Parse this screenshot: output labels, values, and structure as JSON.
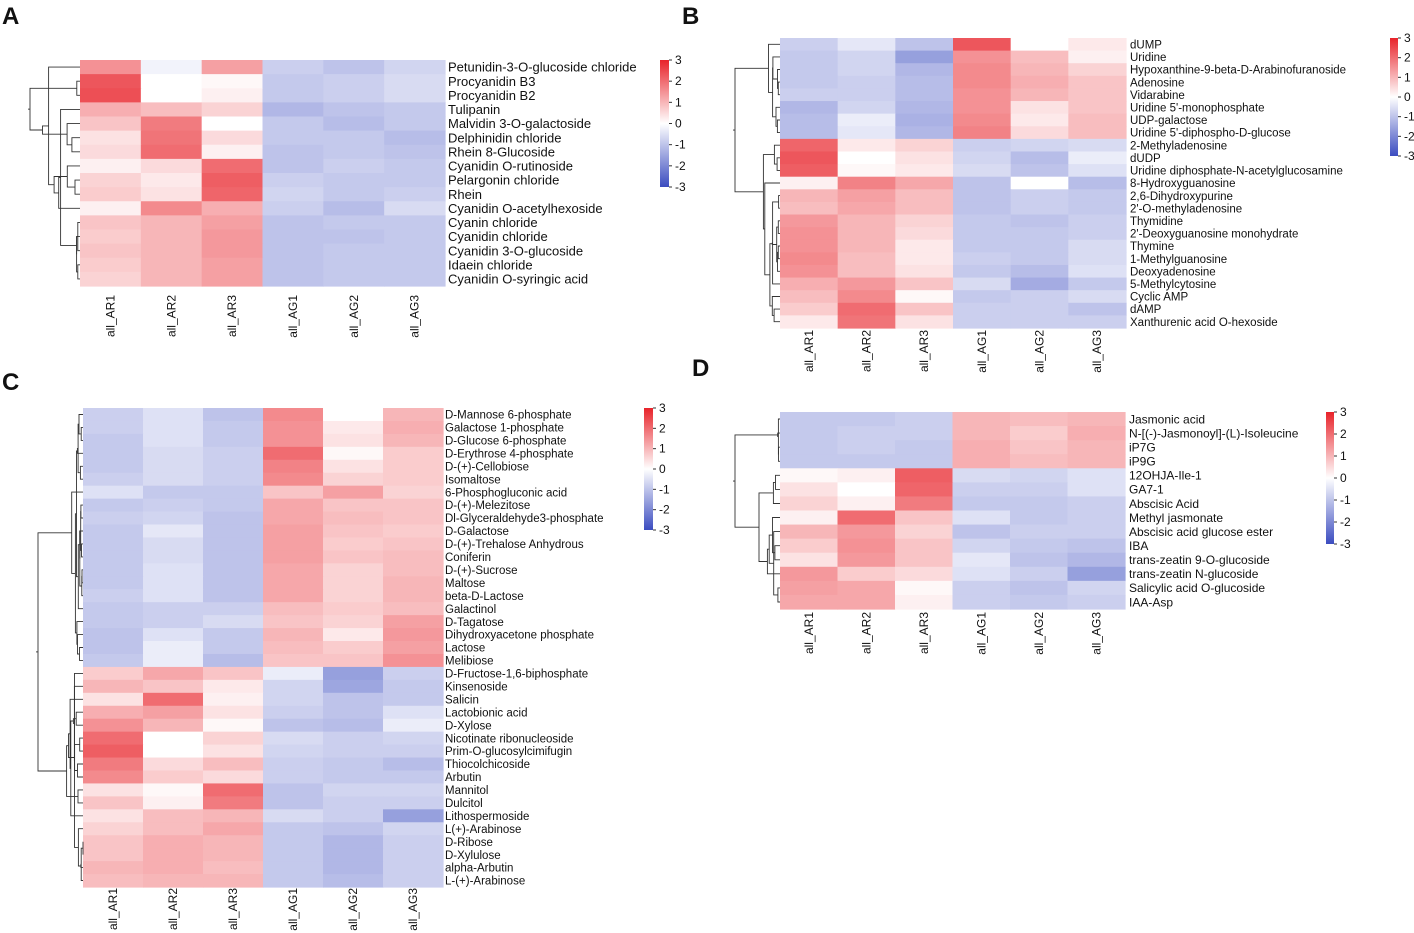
{
  "figure": {
    "colors": {
      "low": "#3b4cc0",
      "mid": "#ffffff",
      "high": "#e8232a",
      "tree": "#333333",
      "text": "#111111"
    }
  },
  "chart_data": [
    {
      "panel": "A",
      "type": "heatmap",
      "columns": [
        "all_AR1",
        "all_AR2",
        "all_AR3",
        "all_AG1",
        "all_AG2",
        "all_AG3"
      ],
      "rows": [
        "Petunidin-3-O-glucoside chloride",
        "Procyanidin B3",
        "Procyanidin B2",
        "Tulipanin",
        "Malvidin 3-O-galactoside",
        "Delphinidin chloride",
        "Rhein 8-Glucoside",
        "Cyanidin O-rutinoside",
        "Pelargonin chloride",
        "Rhein",
        "Cyanidin O-acetylhexoside",
        "Cyanin chloride",
        "Cyanidin chloride",
        "Cyanidin 3-O-glucoside",
        "Idaein chloride",
        "Cyanidin O-syringic acid"
      ],
      "values": [
        [
          1.5,
          -0.2,
          1.3,
          -0.8,
          -1.0,
          -0.7
        ],
        [
          2.3,
          0.0,
          0.1,
          -0.9,
          -0.8,
          -0.6
        ],
        [
          2.4,
          0.0,
          0.2,
          -0.9,
          -0.8,
          -0.6
        ],
        [
          1.1,
          0.9,
          0.6,
          -1.2,
          -1.0,
          -0.9
        ],
        [
          0.8,
          1.8,
          0.0,
          -0.9,
          -1.1,
          -0.9
        ],
        [
          0.4,
          1.9,
          0.5,
          -0.9,
          -0.9,
          -1.1
        ],
        [
          0.5,
          2.0,
          0.2,
          -1.0,
          -0.9,
          -1.0
        ],
        [
          0.2,
          0.5,
          2.0,
          -1.0,
          -0.8,
          -0.9
        ],
        [
          0.6,
          0.3,
          2.2,
          -0.8,
          -0.9,
          -0.9
        ],
        [
          0.7,
          0.4,
          2.1,
          -0.7,
          -0.9,
          -0.8
        ],
        [
          0.2,
          1.6,
          1.1,
          -0.8,
          -1.1,
          -0.6
        ],
        [
          0.8,
          1.0,
          1.3,
          -1.0,
          -0.9,
          -0.9
        ],
        [
          0.7,
          1.0,
          1.4,
          -1.0,
          -1.0,
          -0.9
        ],
        [
          0.8,
          1.0,
          1.4,
          -1.0,
          -0.9,
          -0.9
        ],
        [
          0.7,
          1.0,
          1.3,
          -1.0,
          -0.9,
          -0.9
        ],
        [
          0.6,
          1.0,
          1.3,
          -1.0,
          -0.9,
          -0.9
        ]
      ],
      "legend_ticks": [
        "3",
        "2",
        "1",
        "0",
        "-1",
        "-2",
        "-3"
      ],
      "range": [
        -3,
        3
      ]
    },
    {
      "panel": "B",
      "type": "heatmap",
      "columns": [
        "all_AR1",
        "all_AR2",
        "all_AR3",
        "all_AG1",
        "all_AG2",
        "all_AG3"
      ],
      "rows": [
        "dUMP",
        "Uridine",
        "Hypoxanthine-9-beta-D-Arabinofuranoside",
        "Adenosine",
        "Vidarabine",
        "Uridine 5'-monophosphate",
        "UDP-galactose",
        "Uridine 5'-diphospho-D-glucose",
        "2-Methyladenosine",
        "dUDP",
        "Uridine diphosphate-N-acetylglucosamine",
        "8-Hydroxyguanosine",
        "2,6-Dihydroxypurine",
        "2'-O-methyladenosine",
        "Thymidine",
        "2'-Deoxyguanosine monohydrate",
        "Thymine",
        "1-Methylguanosine",
        "Deoxyadenosine",
        "5-Methylcytosine",
        "Cyclic AMP",
        "dAMP",
        "Xanthurenic acid O-hexoside"
      ],
      "values": [
        [
          -0.8,
          -0.4,
          -1.0,
          2.3,
          0.0,
          0.3
        ],
        [
          -0.9,
          -0.7,
          -1.6,
          1.5,
          0.9,
          0.2
        ],
        [
          -0.9,
          -0.7,
          -1.2,
          1.6,
          1.0,
          0.6
        ],
        [
          -0.9,
          -0.8,
          -1.1,
          1.6,
          1.1,
          0.8
        ],
        [
          -0.8,
          -0.8,
          -1.1,
          1.5,
          1.0,
          0.8
        ],
        [
          -1.2,
          -0.7,
          -1.2,
          1.5,
          0.4,
          0.8
        ],
        [
          -1.1,
          -0.3,
          -1.3,
          1.6,
          0.3,
          0.9
        ],
        [
          -1.1,
          -0.4,
          -1.2,
          1.7,
          0.5,
          0.9
        ],
        [
          2.1,
          0.3,
          0.6,
          -0.8,
          -0.7,
          -0.6
        ],
        [
          2.3,
          0.0,
          0.4,
          -0.7,
          -1.1,
          -0.3
        ],
        [
          2.2,
          0.1,
          0.3,
          -0.6,
          -1.0,
          -0.5
        ],
        [
          0.2,
          1.7,
          1.2,
          -1.0,
          0.0,
          -1.1
        ],
        [
          1.0,
          1.3,
          0.9,
          -1.0,
          -0.8,
          -0.9
        ],
        [
          0.9,
          1.2,
          0.9,
          -1.0,
          -0.8,
          -0.9
        ],
        [
          1.4,
          1.0,
          0.6,
          -0.9,
          -1.0,
          -0.8
        ],
        [
          1.5,
          1.0,
          0.5,
          -0.9,
          -0.9,
          -0.8
        ],
        [
          1.5,
          1.0,
          0.3,
          -0.9,
          -0.9,
          -0.6
        ],
        [
          1.6,
          0.9,
          0.3,
          -0.8,
          -0.9,
          -0.6
        ],
        [
          1.5,
          0.9,
          0.4,
          -0.9,
          -1.1,
          -0.5
        ],
        [
          1.1,
          1.4,
          0.8,
          -0.6,
          -1.4,
          -0.9
        ],
        [
          0.9,
          1.6,
          0.1,
          -0.9,
          -0.8,
          -0.6
        ],
        [
          0.7,
          2.0,
          0.8,
          -0.8,
          -0.8,
          -1.0
        ],
        [
          0.3,
          1.9,
          0.4,
          -0.8,
          -0.8,
          -0.8
        ]
      ],
      "legend_ticks": [
        "3",
        "2",
        "1",
        "0",
        "-1",
        "-2",
        "-3"
      ],
      "range": [
        -3,
        3
      ]
    },
    {
      "panel": "C",
      "type": "heatmap",
      "columns": [
        "all_AR1",
        "all_AR2",
        "all_AR3",
        "all_AG1",
        "all_AG2",
        "all_AG3"
      ],
      "rows": [
        "D-Mannose 6-phosphate",
        "Galactose 1-phosphate",
        "D-Glucose 6-phosphate",
        "D-Erythrose 4-phosphate",
        "D-(+)-Cellobiose",
        "Isomaltose",
        "6-Phosphogluconic acid",
        "D-(+)-Melezitose",
        "Dl-Glyceraldehyde3-phosphate",
        "D-Galactose",
        "D-(+)-Trehalose Anhydrous",
        "Coniferin",
        "D-(+)-Sucrose",
        "Maltose",
        "beta-D-Lactose",
        "Galactinol",
        "D-Tagatose",
        "Dihydroxyacetone phosphate",
        "Lactose",
        "Melibiose",
        "D-Fructose-1,6-biphosphate",
        "Kinsenoside",
        "Salicin",
        "Lactobionic acid",
        "D-Xylose",
        "Nicotinate ribonucleoside",
        "Prim-O-glucosylcimifugin",
        "Thiocolchicoside",
        "Arbutin",
        "Mannitol",
        "Dulcitol",
        "Lithospermoside",
        "L(+)-Arabinose",
        "D-Ribose",
        "D-Xylulose",
        "alpha-Arbutin",
        "L-(+)-Arabinose"
      ],
      "values": [
        [
          -0.8,
          -0.5,
          -1.0,
          1.6,
          0.0,
          1.0
        ],
        [
          -0.8,
          -0.5,
          -0.9,
          1.5,
          0.3,
          1.1
        ],
        [
          -0.9,
          -0.5,
          -0.9,
          1.5,
          0.4,
          1.0
        ],
        [
          -0.9,
          -0.6,
          -0.8,
          2.0,
          0.1,
          0.7
        ],
        [
          -0.9,
          -0.6,
          -0.8,
          1.7,
          0.4,
          0.7
        ],
        [
          -0.8,
          -0.6,
          -0.8,
          1.6,
          0.6,
          0.7
        ],
        [
          -0.5,
          -0.9,
          -0.9,
          0.8,
          1.3,
          0.6
        ],
        [
          -0.9,
          -0.8,
          -0.9,
          1.2,
          0.8,
          0.8
        ],
        [
          -0.8,
          -0.7,
          -1.0,
          1.2,
          0.9,
          0.8
        ],
        [
          -0.9,
          -0.4,
          -1.0,
          1.3,
          0.8,
          0.7
        ],
        [
          -0.9,
          -0.6,
          -1.0,
          1.3,
          0.7,
          0.8
        ],
        [
          -0.9,
          -0.6,
          -1.0,
          1.3,
          0.8,
          0.9
        ],
        [
          -0.9,
          -0.5,
          -1.0,
          1.2,
          0.6,
          0.9
        ],
        [
          -0.9,
          -0.5,
          -1.0,
          1.2,
          0.6,
          1.0
        ],
        [
          -0.8,
          -0.5,
          -1.0,
          1.2,
          0.6,
          1.0
        ],
        [
          -0.9,
          -0.8,
          -0.8,
          0.9,
          0.7,
          0.9
        ],
        [
          -0.9,
          -0.8,
          -0.6,
          0.8,
          0.6,
          1.3
        ],
        [
          -1.0,
          -0.5,
          -0.9,
          1.0,
          0.3,
          1.4
        ],
        [
          -1.0,
          -0.3,
          -0.9,
          0.9,
          0.7,
          1.3
        ],
        [
          -0.9,
          -0.3,
          -1.1,
          0.8,
          0.8,
          1.5
        ],
        [
          0.7,
          1.2,
          0.8,
          -0.3,
          -1.6,
          -0.8
        ],
        [
          1.0,
          0.8,
          0.3,
          -0.7,
          -1.5,
          -0.9
        ],
        [
          0.4,
          2.0,
          0.2,
          -0.7,
          -1.0,
          -0.9
        ],
        [
          1.1,
          1.3,
          0.4,
          -0.8,
          -1.0,
          -0.5
        ],
        [
          1.5,
          1.0,
          0.1,
          -1.0,
          -1.1,
          -0.3
        ],
        [
          2.0,
          0.0,
          0.6,
          -0.6,
          -0.8,
          -0.7
        ],
        [
          2.2,
          0.0,
          0.4,
          -0.7,
          -0.8,
          -0.8
        ],
        [
          1.8,
          0.5,
          0.9,
          -0.8,
          -0.9,
          -1.1
        ],
        [
          1.6,
          0.7,
          0.5,
          -0.8,
          -0.9,
          -0.9
        ],
        [
          0.4,
          0.1,
          2.0,
          -1.0,
          -0.7,
          -0.7
        ],
        [
          0.8,
          0.2,
          1.8,
          -1.0,
          -0.8,
          -0.8
        ],
        [
          0.4,
          0.9,
          1.0,
          -0.6,
          -0.8,
          -1.6
        ],
        [
          0.6,
          0.9,
          1.2,
          -0.9,
          -1.0,
          -0.7
        ],
        [
          0.8,
          1.1,
          1.0,
          -0.9,
          -1.2,
          -0.8
        ],
        [
          0.8,
          1.1,
          1.0,
          -0.9,
          -1.2,
          -0.8
        ],
        [
          1.0,
          1.1,
          0.9,
          -0.9,
          -1.2,
          -0.8
        ],
        [
          0.9,
          1.0,
          1.0,
          -0.9,
          -1.1,
          -0.8
        ]
      ],
      "legend_ticks": [
        "3",
        "2",
        "1",
        "0",
        "-1",
        "-2",
        "-3"
      ],
      "range": [
        -3,
        3
      ]
    },
    {
      "panel": "D",
      "type": "heatmap",
      "columns": [
        "all_AR1",
        "all_AR2",
        "all_AR3",
        "all_AG1",
        "all_AG2",
        "all_AG3"
      ],
      "rows": [
        "Jasmonic acid",
        "N-[(-)-Jasmonoyl]-(L)-Isoleucine",
        "iP7G",
        "iP9G",
        "12OHJA-Ile-1",
        "GA7-1",
        "Abscisic Acid",
        "Methyl jasmonate",
        "Abscisic acid glucose ester",
        "IBA",
        "trans-zeatin 9-O-glucoside",
        "trans-zeatin N-glucoside",
        "Salicylic acid O-glucoside",
        "IAA-Asp"
      ],
      "values": [
        [
          -0.9,
          -0.9,
          -0.8,
          1.0,
          0.9,
          1.0
        ],
        [
          -0.9,
          -0.8,
          -0.8,
          1.0,
          0.7,
          1.1
        ],
        [
          -0.9,
          -0.8,
          -0.9,
          1.1,
          0.8,
          1.0
        ],
        [
          -0.9,
          -0.9,
          -0.9,
          1.1,
          0.9,
          1.0
        ],
        [
          0.1,
          0.2,
          2.2,
          -0.6,
          -0.7,
          -0.5
        ],
        [
          0.4,
          0.0,
          2.1,
          -0.8,
          -0.8,
          -0.5
        ],
        [
          0.6,
          0.2,
          1.8,
          -0.9,
          -0.9,
          -0.8
        ],
        [
          0.2,
          2.0,
          0.8,
          -0.5,
          -0.9,
          -0.8
        ],
        [
          1.0,
          1.4,
          0.6,
          -1.0,
          -0.8,
          -0.8
        ],
        [
          0.7,
          1.5,
          0.8,
          -0.7,
          -0.9,
          -1.0
        ],
        [
          0.4,
          1.4,
          0.8,
          -0.4,
          -1.0,
          -1.2
        ],
        [
          1.4,
          0.7,
          0.5,
          -0.5,
          -0.8,
          -1.6
        ],
        [
          1.3,
          1.2,
          0.1,
          -0.8,
          -1.0,
          -0.7
        ],
        [
          1.2,
          1.2,
          0.2,
          -0.8,
          -0.9,
          -0.8
        ]
      ],
      "legend_ticks": [
        "3",
        "2",
        "1",
        "0",
        "-1",
        "-2",
        "-3"
      ],
      "range": [
        -3,
        3
      ]
    }
  ]
}
